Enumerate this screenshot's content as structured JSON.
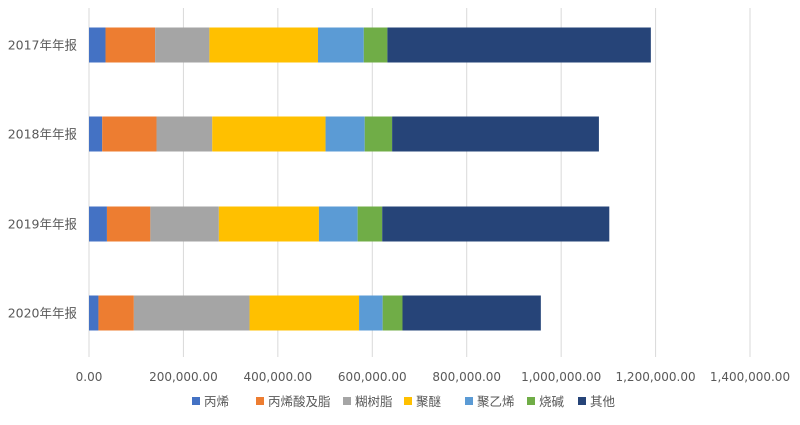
{
  "chart_data": {
    "type": "stacked-bar-horizontal",
    "title": "",
    "xlabel": "",
    "ylabel": "",
    "xlim": [
      0,
      1400000
    ],
    "x_tick_values": [
      0,
      200000,
      400000,
      600000,
      800000,
      1000000,
      1200000,
      1400000
    ],
    "x_tick_labels": [
      "0.00",
      "200,000.00",
      "400,000.00",
      "600,000.00",
      "800,000.00",
      "1,000,000.00",
      "1,200,000.00",
      "1,400,000.00"
    ],
    "grid": true,
    "legend_position": "bottom",
    "categories": [
      "2017年年报",
      "2018年年报",
      "2019年年报",
      "2020年年报"
    ],
    "series": [
      {
        "name": "丙烯",
        "color": "#4472C4",
        "values": [
          35000,
          28000,
          38000,
          20000
        ]
      },
      {
        "name": "丙烯酸及脂",
        "color": "#ED7D31",
        "values": [
          105000,
          115000,
          92000,
          75000
        ]
      },
      {
        "name": "糊树脂",
        "color": "#A5A5A5",
        "values": [
          115000,
          118000,
          145000,
          245000
        ]
      },
      {
        "name": "聚醚",
        "color": "#FFC000",
        "values": [
          230000,
          240000,
          212000,
          232000
        ]
      },
      {
        "name": "聚乙烯",
        "color": "#5B9BD5",
        "values": [
          97000,
          83000,
          82000,
          50000
        ]
      },
      {
        "name": "烧碱",
        "color": "#70AD47",
        "values": [
          50000,
          58000,
          52000,
          42000
        ]
      },
      {
        "name": "其他",
        "color": "#264478",
        "values": [
          558000,
          438000,
          481000,
          293000
        ]
      }
    ]
  }
}
